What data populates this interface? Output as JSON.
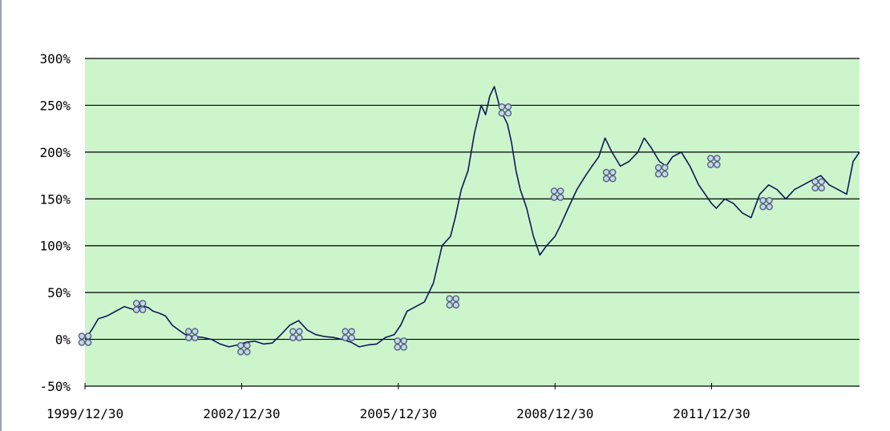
{
  "chart_data": {
    "type": "line",
    "title": "",
    "xlabel": "",
    "ylabel": "",
    "ylim": [
      -50,
      300
    ],
    "y_ticks": [
      -50,
      0,
      50,
      100,
      150,
      200,
      250,
      300
    ],
    "y_tick_labels": [
      "-50%",
      "0%",
      "50%",
      "100%",
      "150%",
      "200%",
      "250%",
      "300%"
    ],
    "x_ticks": [
      "1999-12-30",
      "2002-12-30",
      "2005-12-30",
      "2008-12-30",
      "2011-12-30"
    ],
    "x_tick_labels": [
      "1999/12/30",
      "2002/12/30",
      "2005/12/30",
      "2008/12/30",
      "2011/12/30"
    ],
    "xlim": [
      "1999-12-30",
      "2014-10-30"
    ],
    "grid": "horizontal",
    "legend": "none",
    "colors": {
      "plot_background": "#ccf5cc",
      "line": "#0d1a55",
      "marker_fill": "#c6d6e8",
      "marker_stroke": "#51627d",
      "grid": "#000000"
    },
    "series": [
      {
        "x": [
          "1999-12-30",
          "2000-02-15",
          "2000-04-01",
          "2000-06-01",
          "2000-08-01",
          "2000-10-01",
          "2000-12-01",
          "2001-01-30",
          "2001-03-15",
          "2001-04-20",
          "2001-06-01",
          "2001-07-15",
          "2001-09-01",
          "2001-10-15",
          "2001-12-01",
          "2002-02-01",
          "2002-04-01",
          "2002-06-01",
          "2002-08-01",
          "2002-10-01",
          "2002-12-01",
          "2003-02-01",
          "2003-04-01",
          "2003-06-01",
          "2003-08-01",
          "2003-10-01",
          "2003-12-01",
          "2004-02-01",
          "2004-04-01",
          "2004-06-01",
          "2004-08-01",
          "2004-10-01",
          "2004-12-01",
          "2005-02-01",
          "2005-04-01",
          "2005-06-01",
          "2005-08-01",
          "2005-10-01",
          "2005-12-01",
          "2006-01-15",
          "2006-03-01",
          "2006-05-01",
          "2006-07-01",
          "2006-09-01",
          "2006-11-01",
          "2006-12-30",
          "2007-02-01",
          "2007-03-15",
          "2007-05-01",
          "2007-06-15",
          "2007-08-01",
          "2007-09-01",
          "2007-10-01",
          "2007-11-01",
          "2007-12-15",
          "2008-02-01",
          "2008-03-01",
          "2008-04-01",
          "2008-05-01",
          "2008-06-15",
          "2008-08-01",
          "2008-09-15",
          "2008-11-01",
          "2008-12-30",
          "2009-02-01",
          "2009-04-01",
          "2009-06-01",
          "2009-08-01",
          "2009-09-15",
          "2009-11-01",
          "2009-12-15",
          "2010-02-01",
          "2010-04-01",
          "2010-06-01",
          "2010-08-01",
          "2010-09-15",
          "2010-11-01",
          "2010-12-30",
          "2011-02-15",
          "2011-04-01",
          "2011-06-01",
          "2011-08-01",
          "2011-10-01",
          "2011-12-30",
          "2012-02-01",
          "2012-04-01",
          "2012-06-01",
          "2012-08-01",
          "2012-10-01",
          "2012-12-01",
          "2013-02-01",
          "2013-04-01",
          "2013-06-01",
          "2013-08-01",
          "2013-10-01",
          "2013-12-01",
          "2014-02-01",
          "2014-04-01",
          "2014-06-01",
          "2014-08-01",
          "2014-09-15",
          "2014-10-30"
        ],
        "values": [
          0,
          10,
          22,
          25,
          30,
          35,
          32,
          36,
          34,
          30,
          28,
          25,
          15,
          10,
          5,
          3,
          2,
          0,
          -5,
          -8,
          -6,
          -3,
          -2,
          -5,
          -4,
          5,
          15,
          20,
          10,
          5,
          3,
          2,
          0,
          -3,
          -8,
          -6,
          -5,
          2,
          5,
          15,
          30,
          35,
          40,
          60,
          100,
          110,
          130,
          160,
          180,
          220,
          250,
          240,
          260,
          270,
          245,
          230,
          210,
          180,
          160,
          140,
          110,
          90,
          100,
          110,
          120,
          140,
          160,
          175,
          185,
          195,
          215,
          200,
          185,
          190,
          200,
          215,
          205,
          190,
          185,
          195,
          200,
          185,
          165,
          145,
          140,
          150,
          145,
          135,
          130,
          155,
          165,
          160,
          150,
          160,
          165,
          170,
          175,
          165,
          160,
          155,
          190,
          200
        ]
      }
    ],
    "marker_x": [
      "1999-12-30",
      "2001-01-15",
      "2002-01-15",
      "2003-01-15",
      "2004-01-15",
      "2005-01-15",
      "2006-01-15",
      "2007-01-15",
      "2008-01-15",
      "2009-01-15",
      "2010-01-15",
      "2011-01-15",
      "2012-01-15",
      "2013-01-15",
      "2014-01-15"
    ],
    "marker_values": [
      0,
      35,
      5,
      -10,
      5,
      5,
      -5,
      40,
      245,
      155,
      175,
      180,
      190,
      145,
      165
    ]
  }
}
